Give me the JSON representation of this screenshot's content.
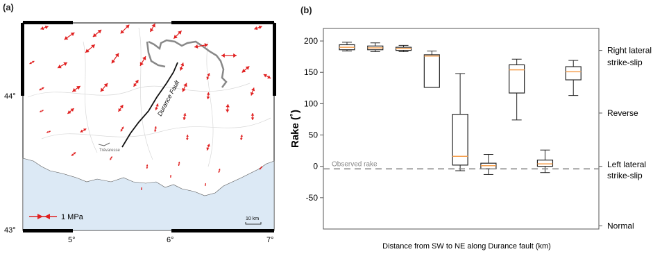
{
  "panel_a": {
    "label": "(a)",
    "lat_labels": [
      "44°",
      "43°"
    ],
    "lon_labels": [
      "5°",
      "6°",
      "7°"
    ],
    "fault_label": "Durance Fault",
    "town_label": "Trévaresse",
    "legend_text": "1  MPa",
    "scalebar_text": "10 km",
    "colors": {
      "sea": "#dce9f5",
      "arrow": "#e02020",
      "border": "#888888",
      "fault": "#111111"
    }
  },
  "panel_b": {
    "label": "(b)"
  },
  "chart_data": {
    "type": "box",
    "ylabel": "Rake (˚)",
    "xlabel": "Distance from SW to NE along Durance fault (km)",
    "ylim": [
      -100,
      220
    ],
    "yticks": [
      -50,
      0,
      50,
      100,
      150,
      200
    ],
    "observed_rake": {
      "label": "Observed rake",
      "value": -4
    },
    "right_labels": [
      {
        "text": "Right lateral",
        "value": 185
      },
      {
        "text": "strike-slip",
        "value": 166
      },
      {
        "text": "Reverse",
        "value": 85
      },
      {
        "text": "Left lateral",
        "value": 3
      },
      {
        "text": "strike-slip",
        "value": -15
      },
      {
        "text": "Normal",
        "value": -95
      }
    ],
    "boxes": [
      {
        "min": 184,
        "q1": 186,
        "median": 190,
        "q3": 194,
        "max": 198
      },
      {
        "min": 183,
        "q1": 186,
        "median": 189,
        "q3": 192,
        "max": 197
      },
      {
        "min": 183,
        "q1": 185,
        "median": 188,
        "q3": 190,
        "max": 193
      },
      {
        "min": 126,
        "q1": 126,
        "median": 176,
        "q3": 178,
        "max": 184
      },
      {
        "min": -7,
        "q1": 2,
        "median": 16,
        "q3": 83,
        "max": 148
      },
      {
        "min": -13,
        "q1": -4,
        "median": 1,
        "q3": 5,
        "max": 19
      },
      {
        "min": 74,
        "q1": 117,
        "median": 154,
        "q3": 162,
        "max": 171
      },
      {
        "min": -10,
        "q1": 0,
        "median": 4,
        "q3": 10,
        "max": 26
      },
      {
        "min": 113,
        "q1": 138,
        "median": 151,
        "q3": 159,
        "max": 169
      }
    ],
    "colors": {
      "box": "#222222",
      "median": "#f5a050",
      "observed": "#888888"
    }
  }
}
